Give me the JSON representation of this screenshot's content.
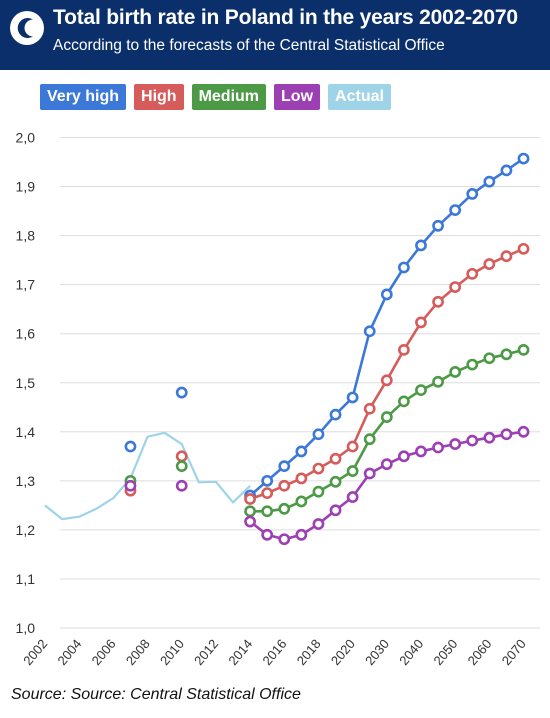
{
  "header": {
    "title": "Total birth rate in Poland in the years 2002-2070",
    "subtitle": "According to the forecasts of the Central Statistical Office"
  },
  "source": "Source: Source: Central Statistical Office",
  "colors": {
    "header_bg": "#0b2f6b",
    "very_high": "#3b78d8",
    "high": "#d65b5b",
    "medium": "#4c9a45",
    "low": "#9c3fb3",
    "actual": "#9fd4e8",
    "grid": "#dddddd"
  },
  "chart_data": {
    "type": "line",
    "x": [
      "2002",
      "2003",
      "2004",
      "2005",
      "2006",
      "2007",
      "2008",
      "2009",
      "2010",
      "2011",
      "2012",
      "2013",
      "2014",
      "2015",
      "2016",
      "2017",
      "2018",
      "2019",
      "2020",
      "2025",
      "2030",
      "2035",
      "2040",
      "2045",
      "2050",
      "2055",
      "2060",
      "2065",
      "2070"
    ],
    "xticks": [
      "2002",
      "2004",
      "2006",
      "2008",
      "2010",
      "2012",
      "2014",
      "2016",
      "2018",
      "2020",
      "2030",
      "2040",
      "2050",
      "2060",
      "2070"
    ],
    "yticks": [
      "2,0",
      "1,9",
      "1,8",
      "1,7",
      "1,6",
      "1,5",
      "1,4",
      "1,3",
      "1,2",
      "1,1",
      "1,0"
    ],
    "ylim": [
      1.0,
      2.0
    ],
    "grid": true,
    "legend_position": "top-left",
    "series": [
      {
        "name": "Very high",
        "color": "#3b78d8",
        "style": "line-markers",
        "values": [
          null,
          null,
          null,
          null,
          null,
          null,
          null,
          null,
          null,
          null,
          null,
          null,
          1.27,
          1.3,
          1.33,
          1.36,
          1.395,
          1.435,
          1.47,
          1.605,
          1.68,
          1.735,
          1.78,
          1.82,
          1.852,
          1.885,
          1.91,
          1.933,
          1.957
        ]
      },
      {
        "name": "High",
        "color": "#d65b5b",
        "style": "line-markers",
        "values": [
          null,
          null,
          null,
          null,
          null,
          null,
          null,
          null,
          null,
          null,
          null,
          null,
          1.263,
          1.275,
          1.29,
          1.305,
          1.325,
          1.345,
          1.37,
          1.447,
          1.505,
          1.567,
          1.623,
          1.665,
          1.695,
          1.722,
          1.742,
          1.758,
          1.773
        ]
      },
      {
        "name": "Medium",
        "color": "#4c9a45",
        "style": "line-markers",
        "values": [
          null,
          null,
          null,
          null,
          null,
          null,
          null,
          null,
          null,
          null,
          null,
          null,
          1.238,
          1.238,
          1.243,
          1.258,
          1.278,
          1.298,
          1.32,
          1.385,
          1.43,
          1.462,
          1.485,
          1.502,
          1.522,
          1.537,
          1.55,
          1.558,
          1.567
        ]
      },
      {
        "name": "Low",
        "color": "#9c3fb3",
        "style": "line-markers",
        "values": [
          null,
          null,
          null,
          null,
          null,
          null,
          null,
          null,
          null,
          null,
          null,
          null,
          1.217,
          1.19,
          1.181,
          1.19,
          1.212,
          1.24,
          1.267,
          1.315,
          1.334,
          1.35,
          1.36,
          1.368,
          1.375,
          1.382,
          1.388,
          1.395,
          1.4
        ]
      },
      {
        "name": "Actual",
        "color": "#9fd4e8",
        "style": "line",
        "values": [
          1.25,
          1.222,
          1.227,
          1.243,
          1.265,
          1.305,
          1.39,
          1.398,
          1.375,
          1.297,
          1.298,
          1.256,
          1.29,
          null,
          null,
          null,
          null,
          null,
          null,
          null,
          null,
          null,
          null,
          null,
          null,
          null,
          null,
          null,
          null
        ]
      }
    ],
    "forecast_points": [
      {
        "x": "2007",
        "series": "Very high",
        "value": 1.37
      },
      {
        "x": "2007",
        "series": "High",
        "value": 1.28
      },
      {
        "x": "2007",
        "series": "Medium",
        "value": 1.3
      },
      {
        "x": "2007",
        "series": "Low",
        "value": 1.29
      },
      {
        "x": "2010",
        "series": "Very high",
        "value": 1.48
      },
      {
        "x": "2010",
        "series": "High",
        "value": 1.35
      },
      {
        "x": "2010",
        "series": "Medium",
        "value": 1.33
      },
      {
        "x": "2010",
        "series": "Low",
        "value": 1.29
      }
    ]
  }
}
